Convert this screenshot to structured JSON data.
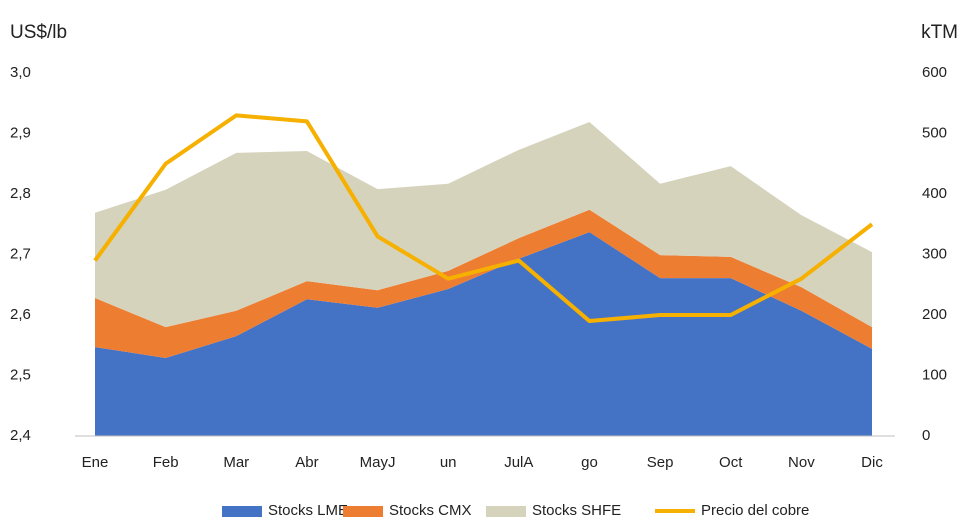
{
  "chart_data": {
    "type": "stacked_area_line",
    "y_label": "US$/lb",
    "y2_label": "kTM",
    "categories": [
      "Ene",
      "Feb",
      "Mar",
      "Abr",
      "MayJ",
      "un",
      "JulA",
      "go",
      "Sep",
      "Oct",
      "Nov",
      "Dic"
    ],
    "series": [
      {
        "name": "Stocks LME",
        "color": "#4472c4",
        "axis": "y2",
        "kind": "area",
        "values": [
          147,
          129,
          165,
          226,
          212,
          243,
          293,
          337,
          261,
          261,
          207,
          144
        ]
      },
      {
        "name": "Stocks CMX",
        "color": "#ed7d31",
        "axis": "y2",
        "kind": "area",
        "values": [
          81,
          51,
          42,
          30,
          29,
          30,
          34,
          37,
          38,
          35,
          39,
          36
        ]
      },
      {
        "name": "Stocks SHFE",
        "color": "#d6d3bd",
        "axis": "y2",
        "kind": "area",
        "values": [
          141,
          227,
          261,
          215,
          167,
          144,
          146,
          145,
          118,
          150,
          119,
          124
        ]
      },
      {
        "name": "Precio del cobre",
        "color": "#f5b000",
        "axis": "y",
        "kind": "line",
        "values": [
          2.69,
          2.85,
          2.93,
          2.92,
          2.73,
          2.66,
          2.69,
          2.59,
          2.6,
          2.6,
          2.66,
          2.75
        ]
      }
    ],
    "ylim": [
      2.4,
      3.0
    ],
    "yticks": [
      {
        "value": 2.4,
        "label": "2,4"
      },
      {
        "value": 2.5,
        "label": "2,5"
      },
      {
        "value": 2.6,
        "label": "2,6"
      },
      {
        "value": 2.7,
        "label": "2,7"
      },
      {
        "value": 2.8,
        "label": "2,8"
      },
      {
        "value": 2.9,
        "label": "2,9"
      },
      {
        "value": 3.0,
        "label": "3,0"
      }
    ],
    "y2lim": [
      0,
      600
    ],
    "y2ticks": [
      0,
      100,
      200,
      300,
      400,
      500,
      600
    ],
    "legend": "bottom"
  }
}
